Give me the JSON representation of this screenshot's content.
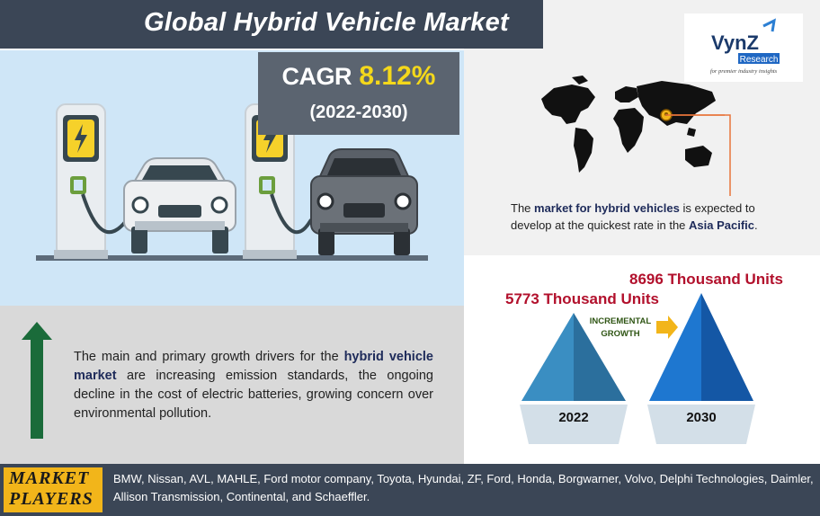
{
  "header": {
    "title": "Global Hybrid Vehicle Market"
  },
  "cagr": {
    "label": "CAGR",
    "value": "8.12%",
    "period": "(2022-2030)"
  },
  "logo": {
    "brand": "VynZ",
    "sub": "Research",
    "tagline": "for premier industry insights"
  },
  "map": {
    "caption_pre": "The ",
    "caption_bold1": "market for hybrid vehicles",
    "caption_mid": " is expected to develop at the quickest rate in the ",
    "caption_bold2": "Asia Pacific",
    "caption_post": "."
  },
  "drivers": {
    "pre": "The main and primary growth drivers for the ",
    "bold": "hybrid vehicle market",
    "post": " are increasing emission standards, the ongoing decline in the cost of electric batteries, growing concern over environmental pollution."
  },
  "volumes": {
    "y2022_units": "5773 Thousand Units",
    "y2030_units": "8696 Thousand Units",
    "y2022_label": "2022",
    "y2030_label": "2030",
    "incremental_1": "INCREMENTAL",
    "incremental_2": "GROWTH"
  },
  "players": {
    "label_1": "MARKET",
    "label_2": "PLAYERS",
    "list": "BMW, Nissan, AVL, MAHLE,  Ford motor company, Toyota, Hyundai, ZF, Ford, Honda, Borgwarner, Volvo, Delphi Technologies, Daimler, Allison Transmission, Continental, and Schaeffler."
  },
  "colors": {
    "header_bg": "#3b4656",
    "accent_yellow": "#f4d81b",
    "units_red": "#b2102c",
    "arrow_green": "#1a6b3a",
    "pyramid_2022": "#3a8ec2",
    "pyramid_2030": "#1565c0"
  }
}
